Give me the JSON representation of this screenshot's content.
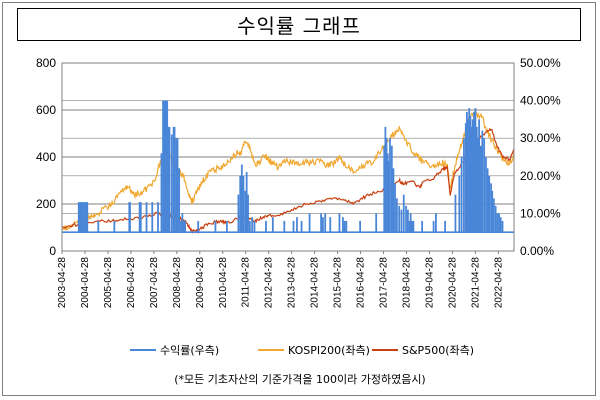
{
  "title": "수익률 그래프",
  "footnote": "(*모든 기초자산의 기준가격을 100이라 가정하였음시)",
  "colors": {
    "rate": "#4a86d8",
    "kospi": "#f0a830",
    "sp500": "#c84010"
  },
  "chart_data": {
    "type": "line",
    "title": "수익률 그래프",
    "xlabel": "",
    "ylabel": "",
    "y_left_lim": [
      0,
      800
    ],
    "y_left_ticks": [
      "0",
      "200",
      "400",
      "600",
      "800"
    ],
    "y_right_lim": [
      0,
      0.5
    ],
    "y_right_ticks": [
      "0.00%",
      "10.00%",
      "20.00%",
      "30.00%",
      "40.00%",
      "50.00%"
    ],
    "x_tick_labels": [
      "2003-04-28",
      "2004-04-28",
      "2005-04-28",
      "2006-04-28",
      "2007-04-28",
      "2008-04-28",
      "2009-04-28",
      "2010-04-28",
      "2011-04-28",
      "2012-04-28",
      "2013-04-28",
      "2014-04-28",
      "2015-04-28",
      "2016-04-28",
      "2017-04-28",
      "2018-04-28",
      "2019-04-28",
      "2020-04-28",
      "2021-04-28",
      "2022-04-28"
    ],
    "x_range": [
      2003.32,
      2023.0
    ],
    "grid": "horizontal",
    "legend": "bottom",
    "series": [
      {
        "name": "KOSPI200(좌측)",
        "axis": "left",
        "x": [
          2003.32,
          2003.6,
          2003.9,
          2004.2,
          2004.32,
          2004.6,
          2004.9,
          2005.2,
          2005.5,
          2005.8,
          2006.1,
          2006.32,
          2006.5,
          2006.8,
          2007.1,
          2007.32,
          2007.6,
          2007.85,
          2008.1,
          2008.32,
          2008.6,
          2008.8,
          2008.95,
          2009.1,
          2009.32,
          2009.5,
          2009.8,
          2010.1,
          2010.32,
          2010.6,
          2010.9,
          2011.1,
          2011.32,
          2011.5,
          2011.7,
          2011.9,
          2012.2,
          2012.4,
          2012.7,
          2013.0,
          2013.3,
          2013.6,
          2013.9,
          2014.2,
          2014.5,
          2014.8,
          2015.1,
          2015.4,
          2015.7,
          2016.0,
          2016.3,
          2016.6,
          2016.9,
          2017.2,
          2017.5,
          2017.8,
          2018.0,
          2018.2,
          2018.5,
          2018.8,
          2019.0,
          2019.3,
          2019.6,
          2019.9,
          2020.1,
          2020.22,
          2020.4,
          2020.6,
          2020.8,
          2021.0,
          2021.3,
          2021.6,
          2021.8,
          2022.0,
          2022.3,
          2022.6,
          2022.8,
          2023.0
        ],
        "values": [
          95,
          105,
          120,
          150,
          135,
          145,
          160,
          185,
          200,
          250,
          275,
          260,
          235,
          250,
          270,
          290,
          380,
          430,
          390,
          360,
          320,
          260,
          210,
          230,
          280,
          305,
          340,
          350,
          360,
          380,
          415,
          420,
          470,
          440,
          370,
          380,
          410,
          380,
          360,
          380,
          380,
          370,
          380,
          375,
          385,
          365,
          370,
          400,
          355,
          345,
          355,
          370,
          380,
          430,
          470,
          500,
          520,
          480,
          440,
          400,
          380,
          370,
          355,
          375,
          360,
          260,
          350,
          420,
          480,
          560,
          590,
          570,
          520,
          480,
          420,
          380,
          375,
          400
        ]
      },
      {
        "name": "S&P500(좌측)",
        "axis": "left",
        "x": [
          2003.32,
          2003.8,
          2004.32,
          2004.9,
          2005.5,
          2006.0,
          2006.5,
          2007.0,
          2007.5,
          2007.8,
          2008.1,
          2008.4,
          2008.7,
          2008.9,
          2009.1,
          2009.3,
          2009.6,
          2010.0,
          2010.32,
          2010.5,
          2011.0,
          2011.32,
          2011.7,
          2012.0,
          2012.32,
          2012.8,
          2013.32,
          2013.8,
          2014.32,
          2014.8,
          2015.32,
          2015.7,
          2016.1,
          2016.5,
          2017.0,
          2017.5,
          2018.0,
          2018.2,
          2018.5,
          2018.9,
          2019.0,
          2019.5,
          2019.9,
          2020.1,
          2020.22,
          2020.4,
          2020.8,
          2021.0,
          2021.4,
          2021.8,
          2022.0,
          2022.3,
          2022.5,
          2022.8,
          2023.0
        ],
        "values": [
          100,
          110,
          118,
          125,
          128,
          135,
          138,
          150,
          160,
          158,
          145,
          140,
          125,
          95,
          80,
          90,
          110,
          125,
          128,
          118,
          140,
          148,
          122,
          140,
          150,
          155,
          175,
          195,
          205,
          220,
          225,
          210,
          205,
          230,
          250,
          265,
          300,
          285,
          300,
          270,
          290,
          310,
          350,
          355,
          240,
          330,
          380,
          420,
          470,
          510,
          520,
          440,
          400,
          390,
          430
        ]
      },
      {
        "name": "수익률(우측)",
        "axis": "right",
        "type": "bar-spikes",
        "baseline": 0.05,
        "x": [
          2004.05,
          2004.12,
          2004.18,
          2004.24,
          2004.28,
          2004.36,
          2004.42,
          2004.9,
          2005.6,
          2006.25,
          2006.28,
          2006.7,
          2006.75,
          2007.0,
          2007.25,
          2007.5,
          2007.65,
          2007.72,
          2007.78,
          2007.82,
          2007.86,
          2007.9,
          2007.95,
          2008.0,
          2008.1,
          2008.18,
          2008.22,
          2008.3,
          2008.35,
          2008.42,
          2008.5,
          2008.56,
          2008.62,
          2008.68,
          2009.25,
          2010.0,
          2010.5,
          2011.0,
          2011.08,
          2011.15,
          2011.22,
          2011.3,
          2011.36,
          2011.42,
          2011.5,
          2011.6,
          2011.7,
          2012.2,
          2012.5,
          2013.0,
          2013.4,
          2013.55,
          2013.75,
          2014.1,
          2014.6,
          2014.68,
          2014.78,
          2015.0,
          2015.4,
          2015.55,
          2015.62,
          2015.7,
          2016.3,
          2017.0,
          2017.35,
          2017.4,
          2017.45,
          2017.5,
          2017.55,
          2017.6,
          2017.68,
          2017.75,
          2017.82,
          2017.9,
          2018.0,
          2018.1,
          2018.2,
          2018.3,
          2018.38,
          2018.45,
          2018.5,
          2018.55,
          2018.62,
          2019.0,
          2019.5,
          2019.6,
          2020.0,
          2020.45,
          2020.62,
          2020.72,
          2020.82,
          2020.9,
          2020.95,
          2021.0,
          2021.05,
          2021.1,
          2021.15,
          2021.2,
          2021.26,
          2021.32,
          2021.38,
          2021.42,
          2021.48,
          2021.55,
          2021.62,
          2021.7,
          2021.78,
          2021.85,
          2021.92,
          2022.0,
          2022.05,
          2022.12,
          2022.2,
          2022.28,
          2022.35,
          2022.42,
          2022.5
        ],
        "values": [
          0.13,
          0.13,
          0.13,
          0.13,
          0.13,
          0.13,
          0.13,
          0.08,
          0.08,
          0.13,
          0.13,
          0.13,
          0.13,
          0.13,
          0.13,
          0.13,
          0.26,
          0.4,
          0.4,
          0.4,
          0.4,
          0.4,
          0.33,
          0.33,
          0.31,
          0.33,
          0.33,
          0.3,
          0.3,
          0.22,
          0.08,
          0.1,
          0.08,
          0.08,
          0.08,
          0.08,
          0.08,
          0.15,
          0.2,
          0.23,
          0.2,
          0.16,
          0.21,
          0.15,
          0.08,
          0.09,
          0.08,
          0.08,
          0.09,
          0.08,
          0.08,
          0.09,
          0.08,
          0.1,
          0.1,
          0.09,
          0.1,
          0.09,
          0.1,
          0.09,
          0.08,
          0.08,
          0.08,
          0.1,
          0.28,
          0.33,
          0.3,
          0.26,
          0.24,
          0.3,
          0.28,
          0.22,
          0.18,
          0.14,
          0.12,
          0.11,
          0.15,
          0.12,
          0.11,
          0.08,
          0.1,
          0.08,
          0.08,
          0.08,
          0.08,
          0.1,
          0.08,
          0.15,
          0.2,
          0.25,
          0.3,
          0.34,
          0.37,
          0.35,
          0.38,
          0.36,
          0.33,
          0.35,
          0.37,
          0.38,
          0.33,
          0.3,
          0.35,
          0.28,
          0.32,
          0.3,
          0.25,
          0.22,
          0.2,
          0.18,
          0.16,
          0.14,
          0.12,
          0.1,
          0.1,
          0.09,
          0.08
        ]
      }
    ]
  }
}
